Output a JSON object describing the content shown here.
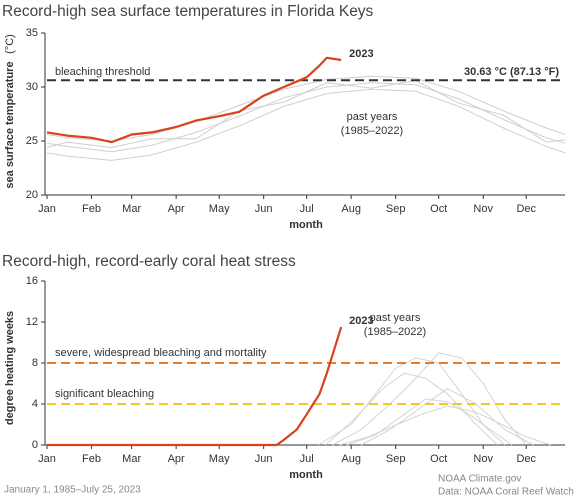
{
  "chart_data": [
    {
      "type": "line",
      "title": "Record-high sea surface temperatures in Florida Keys",
      "x_label": "month",
      "y_label": "sea surface temperature",
      "y_unit": "(°C)",
      "xlim": [
        1,
        362
      ],
      "ylim": [
        20,
        35
      ],
      "xticks": [
        {
          "value": 1,
          "label": "Jan"
        },
        {
          "value": 32,
          "label": "Feb"
        },
        {
          "value": 60,
          "label": "Mar"
        },
        {
          "value": 91,
          "label": "Apr"
        },
        {
          "value": 121,
          "label": "May"
        },
        {
          "value": 152,
          "label": "Jun"
        },
        {
          "value": 182,
          "label": "Jul"
        },
        {
          "value": 213,
          "label": "Aug"
        },
        {
          "value": 244,
          "label": "Sep"
        },
        {
          "value": 274,
          "label": "Oct"
        },
        {
          "value": 305,
          "label": "Nov"
        },
        {
          "value": 335,
          "label": "Dec"
        }
      ],
      "yticks": [
        20,
        25,
        30,
        35
      ],
      "thresholds": [
        {
          "value": 30.63,
          "label": "bleaching threshold",
          "value_label": "30.63 °C (87.13 °F)",
          "color": "#333333"
        }
      ],
      "background_series": {
        "label": [
          "past years",
          "(1985–2022)"
        ],
        "color": "#cfcfcf",
        "lines": [
          {
            "x": [
              1,
              15,
              46,
              74,
              105,
              135,
              166,
              196,
              227,
              258,
              288,
              319,
              349,
              362
            ],
            "values": [
              24.8,
              24.5,
              24.0,
              24.6,
              25.8,
              27.3,
              29.0,
              30.0,
              30.4,
              30.2,
              28.9,
              27.0,
              25.3,
              24.8
            ]
          },
          {
            "x": [
              1,
              15,
              46,
              74,
              105,
              135,
              166,
              196,
              227,
              258,
              288,
              319,
              349,
              362
            ],
            "values": [
              25.6,
              25.3,
              25.0,
              25.6,
              26.8,
              28.3,
              29.8,
              30.7,
              31.0,
              30.8,
              29.6,
              27.8,
              26.2,
              25.6
            ]
          },
          {
            "x": [
              1,
              15,
              46,
              74,
              105,
              135,
              166,
              196,
              227,
              258,
              288,
              319,
              349,
              362
            ],
            "values": [
              23.9,
              23.6,
              23.2,
              23.7,
              24.9,
              26.4,
              28.2,
              29.4,
              29.8,
              29.6,
              28.2,
              26.2,
              24.5,
              23.9
            ]
          },
          {
            "x": [
              1,
              15,
              46,
              74,
              105,
              135,
              166,
              196,
              227,
              258,
              288,
              319,
              349,
              362
            ],
            "values": [
              24.4,
              24.9,
              24.4,
              25.2,
              25.2,
              27.8,
              28.6,
              30.4,
              29.9,
              30.6,
              28.5,
              27.4,
              24.9,
              25.1
            ]
          }
        ]
      },
      "series": [
        {
          "name": "2023",
          "color": "#d8431b",
          "x": [
            1,
            15,
            32,
            46,
            60,
            74,
            91,
            105,
            121,
            135,
            152,
            166,
            182,
            191,
            196,
            206
          ],
          "values": [
            25.8,
            25.5,
            25.3,
            24.9,
            25.6,
            25.8,
            26.3,
            26.9,
            27.3,
            27.7,
            29.2,
            30.0,
            30.9,
            32.0,
            32.7,
            32.5
          ]
        }
      ]
    },
    {
      "type": "line",
      "title": "Record-high, record-early coral heat stress",
      "x_label": "month",
      "y_label": "degree heating weeks",
      "xlim": [
        1,
        362
      ],
      "ylim": [
        0,
        16
      ],
      "xticks": [
        {
          "value": 1,
          "label": "Jan"
        },
        {
          "value": 32,
          "label": "Feb"
        },
        {
          "value": 60,
          "label": "Mar"
        },
        {
          "value": 91,
          "label": "Apr"
        },
        {
          "value": 121,
          "label": "May"
        },
        {
          "value": 152,
          "label": "Jun"
        },
        {
          "value": 182,
          "label": "Jul"
        },
        {
          "value": 213,
          "label": "Aug"
        },
        {
          "value": 244,
          "label": "Sep"
        },
        {
          "value": 274,
          "label": "Oct"
        },
        {
          "value": 305,
          "label": "Nov"
        },
        {
          "value": 335,
          "label": "Dec"
        }
      ],
      "yticks": [
        0,
        4,
        8,
        12,
        16
      ],
      "thresholds": [
        {
          "value": 8,
          "label": "severe, widespread bleaching and mortality",
          "color": "#f07a20"
        },
        {
          "value": 4,
          "label": "significant bleaching",
          "color": "#f2cc1c"
        }
      ],
      "background_series": {
        "label": [
          "past years",
          "(1985–2022)"
        ],
        "color": "#d4d4d4",
        "lines": [
          {
            "x": [
              190,
              213,
              230,
              244,
              258,
              274,
              290,
              305,
              320
            ],
            "values": [
              0,
              2,
              5,
              7.5,
              8.5,
              8,
              5,
              2,
              0
            ]
          },
          {
            "x": [
              200,
              220,
              240,
              258,
              274,
              290,
              305,
              320,
              335
            ],
            "values": [
              0,
              1.5,
              4,
              6.5,
              9,
              8.5,
              6,
              2.5,
              0
            ]
          },
          {
            "x": [
              210,
              230,
              250,
              265,
              280,
              295,
              310,
              325
            ],
            "values": [
              0,
              1,
              3,
              4.5,
              4.2,
              3,
              1.5,
              0
            ]
          },
          {
            "x": [
              195,
              215,
              235,
              250,
              265,
              280,
              300,
              315
            ],
            "values": [
              0,
              2.5,
              5.5,
              7,
              6.5,
              5,
              2,
              0
            ]
          },
          {
            "x": [
              220,
              240,
              260,
              280,
              300,
              320,
              340
            ],
            "values": [
              0,
              1.5,
              3.5,
              5.5,
              4,
              1.5,
              0
            ]
          },
          {
            "x": [
              205,
              225,
              245,
              262,
              280,
              300,
              318,
              335,
              352
            ],
            "values": [
              0,
              0.8,
              2,
              3,
              3.8,
              3.2,
              2,
              0.8,
              0
            ]
          }
        ]
      },
      "series": [
        {
          "name": "2023",
          "color": "#d8431b",
          "x": [
            1,
            60,
            121,
            161,
            166,
            175,
            182,
            191,
            196,
            206
          ],
          "values": [
            0,
            0,
            0,
            0,
            0.5,
            1.5,
            3,
            5,
            7,
            11.5
          ]
        }
      ]
    }
  ],
  "footer": {
    "date_range": "January 1, 1985–July 25, 2023",
    "credit": "NOAA Climate.gov",
    "source": "Data: NOAA Coral Reef Watch"
  }
}
